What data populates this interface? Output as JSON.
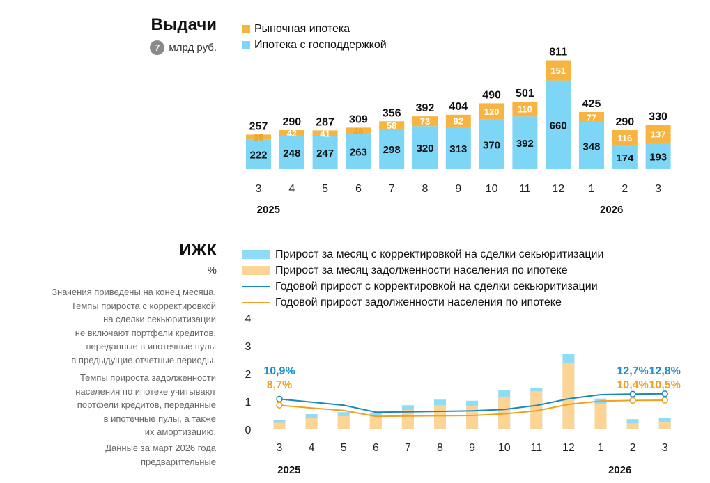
{
  "colors": {
    "market": "#f7b440",
    "subsidized": "#7dd6f6",
    "bar_light_blue": "#8fdcf6",
    "bar_light_orange": "#fcd596",
    "line_blue": "#1c87bd",
    "line_orange": "#f0a020",
    "label_blue": "#1c8fc9",
    "label_orange": "#f0a020"
  },
  "issuance": {
    "title": "Выдачи",
    "unit_badge": "7",
    "unit": "млрд руб.",
    "legend": [
      "Рыночная ипотека",
      "Ипотека с господдержкой"
    ]
  },
  "izhk": {
    "title": "ИЖК",
    "unit": "%",
    "legend": [
      "Прирост за месяц с корректировкой на сделки секьюритизации",
      "Прирост за месяц задолженности населения по ипотеке",
      "Годовой прирост с корректировкой на сделки секьюритизации",
      "Годовой прирост задолженности населения по ипотеке"
    ],
    "notes": [
      [
        "Значения приведены на конец месяца.",
        "Темпы прироста с корректировкой",
        "на сделки секьюритизации",
        "не включают портфели кредитов,",
        "переданные в ипотечные пулы",
        "в предыдущие отчетные периоды."
      ],
      [
        "Темпы прироста задолженности",
        "населения по ипотеке учитывают",
        "портфели кредитов, переданные",
        "в ипотечные пулы, а также",
        "их амортизацию."
      ],
      [
        "Данные за март 2026 года",
        "предварительные"
      ]
    ]
  },
  "chart_data": [
    {
      "type": "bar",
      "stacked": true,
      "categories": [
        "3",
        "4",
        "5",
        "6",
        "7",
        "8",
        "9",
        "10",
        "11",
        "12",
        "1",
        "2",
        "3"
      ],
      "year_labels": [
        "2025",
        "2026"
      ],
      "series": [
        {
          "name": "Ипотека с господдержкой",
          "values": [
            222,
            248,
            247,
            263,
            298,
            320,
            313,
            370,
            392,
            660,
            348,
            174,
            193
          ]
        },
        {
          "name": "Рыночная ипотека",
          "values": [
            35,
            42,
            41,
            46,
            58,
            73,
            92,
            120,
            110,
            151,
            77,
            116,
            137
          ]
        }
      ],
      "totals": [
        257,
        290,
        287,
        309,
        356,
        392,
        404,
        490,
        501,
        811,
        425,
        290,
        330
      ],
      "ylim": [
        0,
        850
      ],
      "grid": false
    },
    {
      "type": "bar",
      "categories": [
        "3",
        "4",
        "5",
        "6",
        "7",
        "8",
        "9",
        "10",
        "11",
        "12",
        "1",
        "2",
        "3"
      ],
      "year_labels": [
        "2025",
        "2026"
      ],
      "yticks": [
        "0",
        "1",
        "2",
        "3",
        "4"
      ],
      "ylim": [
        0,
        4
      ],
      "grid": false,
      "series": [
        {
          "name": "Прирост за месяц с корректировкой на сделки секьюритизации",
          "type": "bar",
          "values": [
            0.33,
            0.55,
            0.62,
            0.6,
            0.87,
            1.07,
            1.03,
            1.4,
            1.5,
            2.72,
            1.11,
            0.37,
            0.42
          ]
        },
        {
          "name": "Прирост за месяц задолженности населения по ипотеке",
          "type": "bar",
          "values": [
            0.24,
            0.42,
            0.48,
            0.48,
            0.7,
            0.87,
            0.84,
            1.18,
            1.37,
            2.38,
            0.92,
            0.22,
            0.27
          ]
        },
        {
          "name": "Годовой прирост с корректировкой на сделки секьюритизации",
          "type": "line",
          "values": [
            1.09,
            0.98,
            0.87,
            0.62,
            0.63,
            0.65,
            0.67,
            0.72,
            0.86,
            1.1,
            1.25,
            1.27,
            1.28
          ]
        },
        {
          "name": "Годовой прирост задолженности населения по ипотеке",
          "type": "line",
          "values": [
            0.87,
            0.77,
            0.68,
            0.47,
            0.48,
            0.49,
            0.5,
            0.56,
            0.67,
            0.9,
            1.02,
            1.04,
            1.05
          ]
        }
      ],
      "annotations": {
        "blue": [
          {
            "index": 0,
            "text": "10,9%"
          },
          {
            "index": 11,
            "text": "12,7%"
          },
          {
            "index": 12,
            "text": "12,8%"
          }
        ],
        "orange": [
          {
            "index": 0,
            "text": "8,7%"
          },
          {
            "index": 11,
            "text": "10,4%"
          },
          {
            "index": 12,
            "text": "10,5%"
          }
        ]
      }
    }
  ]
}
